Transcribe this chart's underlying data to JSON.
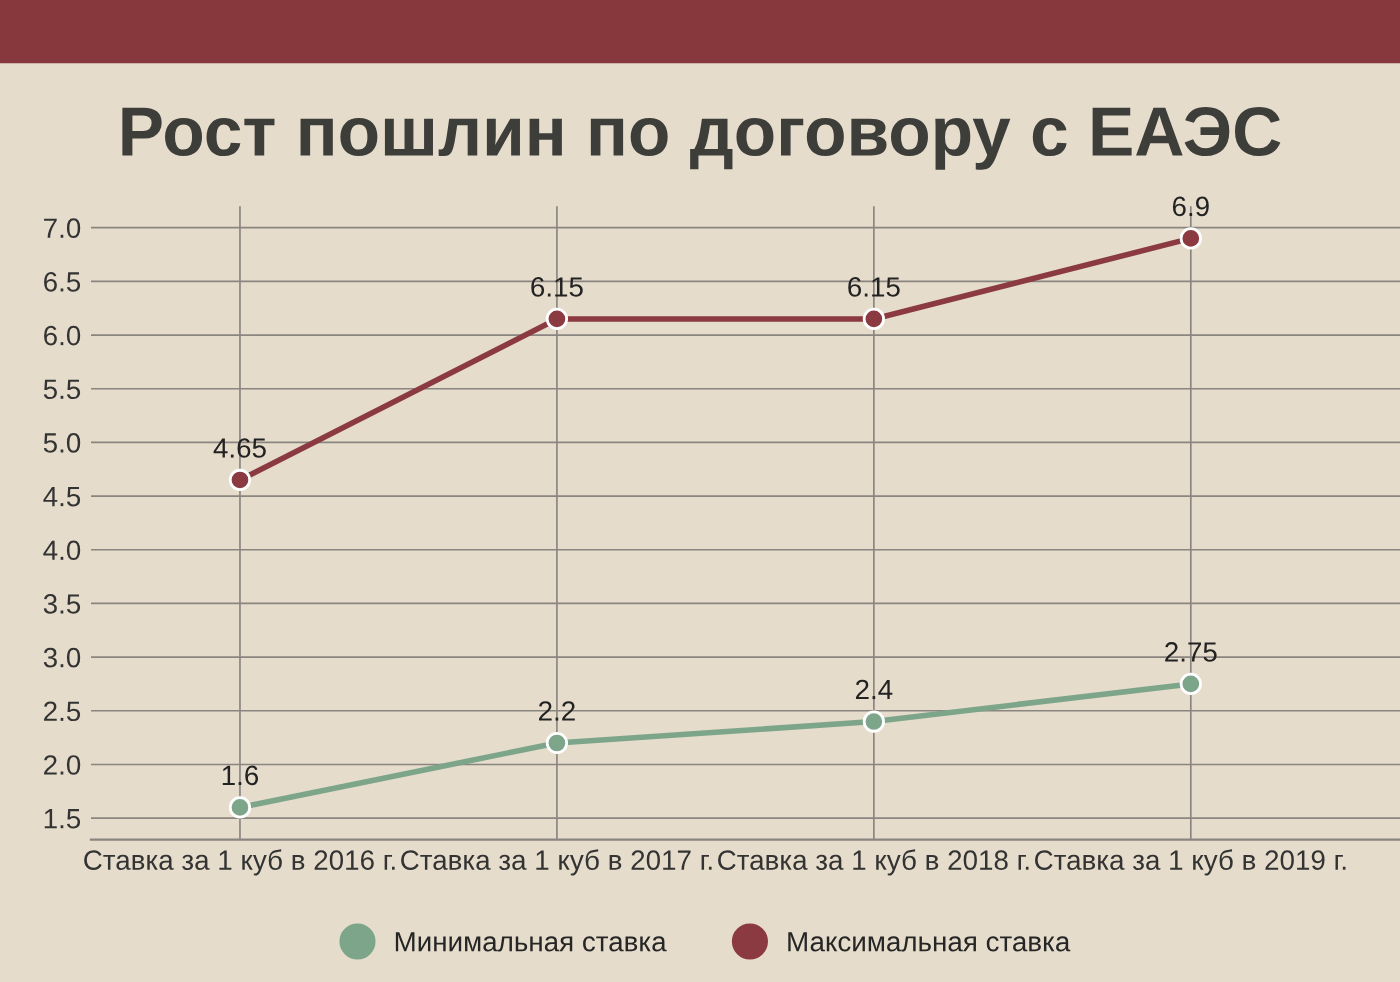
{
  "chart_data": {
    "type": "line",
    "title": "Рост пошлин по договору с ЕАЭС",
    "categories": [
      "Ставка за 1 куб в 2016 г.",
      "Ставка за 1 куб в 2017 г.",
      "Ставка за 1 куб в 2018 г.",
      "Ставка за 1 куб в 2019 г."
    ],
    "series": [
      {
        "name": "Минимальная ставка",
        "color": "#7da58a",
        "values": [
          1.6,
          2.2,
          2.4,
          2.75
        ]
      },
      {
        "name": "Максимальная ставка",
        "color": "#8a3a40",
        "values": [
          4.65,
          6.15,
          6.15,
          6.9
        ]
      }
    ],
    "ylim": [
      1.3,
      7.2
    ],
    "yticks": [
      {
        "value": 1.5,
        "label": "1.5"
      },
      {
        "value": 2,
        "label": "2.0"
      },
      {
        "value": 2.5,
        "label": "2.5"
      },
      {
        "value": 3,
        "label": "3.0"
      },
      {
        "value": 3.5,
        "label": "3.5"
      },
      {
        "value": 4,
        "label": "4.0"
      },
      {
        "value": 4.5,
        "label": "4.5"
      },
      {
        "value": 5,
        "label": "5.0"
      },
      {
        "value": 5.5,
        "label": "5.5"
      },
      {
        "value": 6,
        "label": "6.0"
      },
      {
        "value": 6.5,
        "label": "6.5"
      },
      {
        "value": 7,
        "label": "7.0"
      }
    ],
    "grid": true,
    "legend": "bottom",
    "marker": "circle",
    "line_style": "solid",
    "data_labels": true
  }
}
